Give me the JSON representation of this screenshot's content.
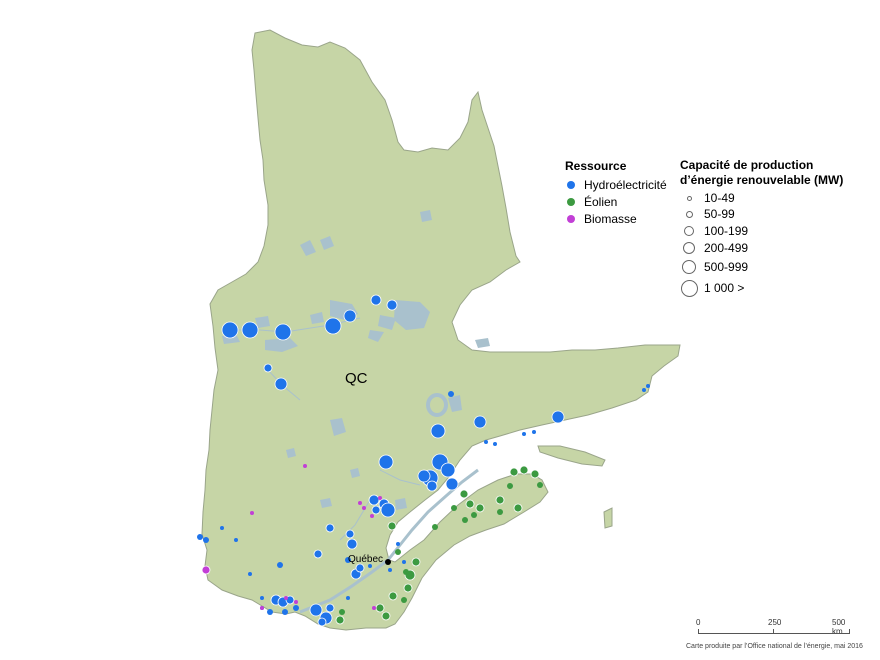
{
  "map": {
    "region_label": "QC",
    "city_label": "Québec",
    "colors": {
      "land": "#c6d5a6",
      "water": "#a9c1cd",
      "border": "#9aa58a",
      "hydro": "#1f74ea",
      "wind": "#3c9a41",
      "biomass": "#c23fd6"
    }
  },
  "legend_resource": {
    "title": "Ressource",
    "items": [
      {
        "label": "Hydroélectricité",
        "color": "#1f74ea"
      },
      {
        "label": "Éolien",
        "color": "#3c9a41"
      },
      {
        "label": "Biomasse",
        "color": "#c23fd6"
      }
    ]
  },
  "legend_capacity": {
    "title_line1": "Capacité de production",
    "title_line2": "d’énergie renouvelable (MW)",
    "classes": [
      "10-49",
      "50-99",
      "100-199",
      "200-499",
      "500-999",
      "1 000 >"
    ]
  },
  "scale": {
    "label_0": "0",
    "label_250": "250",
    "label_500": "500 km"
  },
  "credit": "Carte produite par l’Office national de l’énergie, mai 2016"
}
